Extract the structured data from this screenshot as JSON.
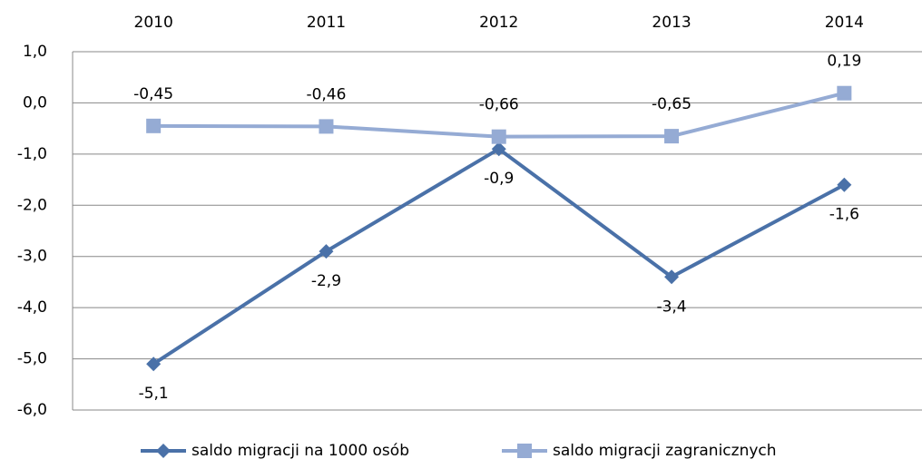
{
  "chart_data": {
    "type": "line",
    "categories": [
      "2010",
      "2011",
      "2012",
      "2013",
      "2014"
    ],
    "series": [
      {
        "name": "saldo migracji na 1000 osób",
        "color": "#4a71a8",
        "marker": "diamond",
        "values": [
          -5.1,
          -2.9,
          -0.9,
          -3.4,
          -1.6
        ],
        "value_labels": [
          "-5,1",
          "-2,9",
          "-0,9",
          "-3,4",
          "-1,6"
        ]
      },
      {
        "name": "saldo migracji zagranicznych",
        "color": "#95abd4",
        "marker": "square",
        "values": [
          -0.45,
          -0.46,
          -0.66,
          -0.65,
          0.19
        ],
        "value_labels": [
          "-0,45",
          "-0,46",
          "-0,66",
          "-0,65",
          "0,19"
        ]
      }
    ],
    "ylim": [
      -6,
      1
    ],
    "yticks": [
      {
        "value": -6,
        "label": "-6,0"
      },
      {
        "value": -5,
        "label": "-5,0"
      },
      {
        "value": -4,
        "label": "-4,0"
      },
      {
        "value": -3,
        "label": "-3,0"
      },
      {
        "value": -2,
        "label": "-2,0"
      },
      {
        "value": -1,
        "label": "-1,0"
      },
      {
        "value": 0,
        "label": "0,0"
      },
      {
        "value": 1,
        "label": "1,0"
      }
    ],
    "grid": true,
    "legend": "bottom"
  }
}
